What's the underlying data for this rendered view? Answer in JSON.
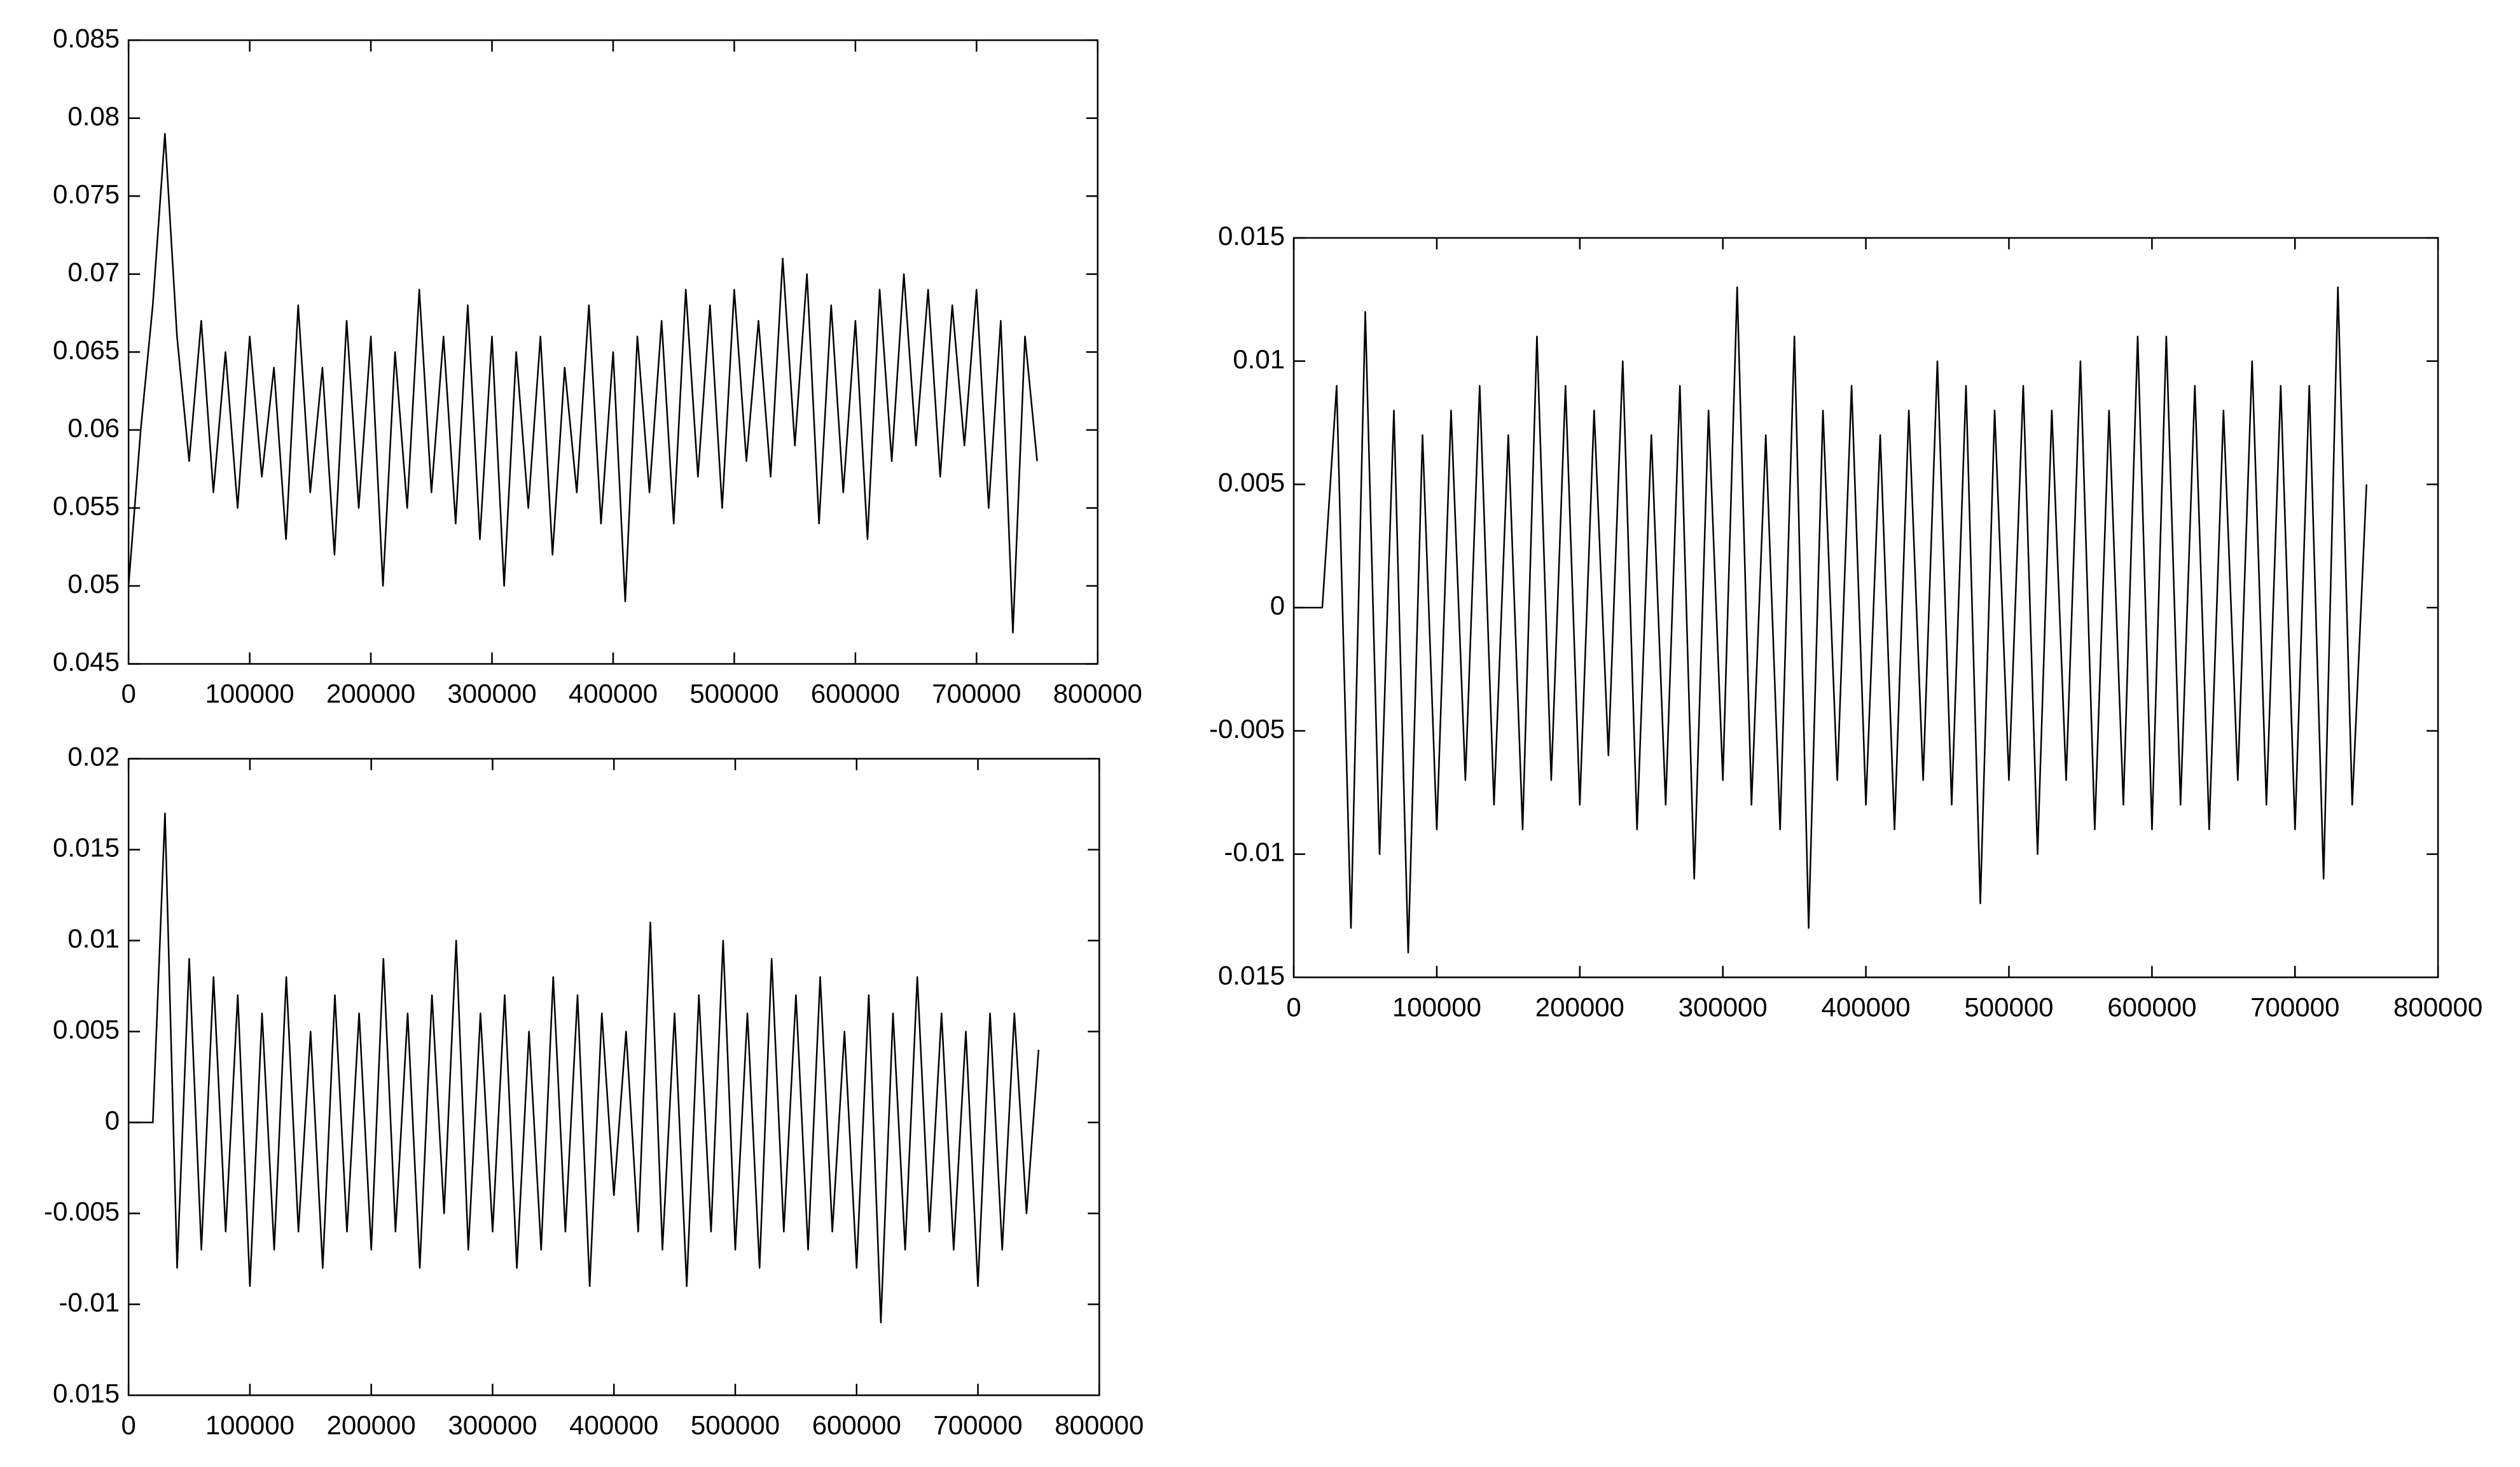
{
  "chart_data": [
    {
      "type": "line",
      "color": "#000000",
      "x": [
        0,
        10000,
        20000,
        30000,
        40000,
        50000,
        60000,
        70000,
        80000,
        90000,
        100000,
        110000,
        120000,
        130000,
        140000,
        150000,
        160000,
        170000,
        180000,
        190000,
        200000,
        210000,
        220000,
        230000,
        240000,
        250000,
        260000,
        270000,
        280000,
        290000,
        300000,
        310000,
        320000,
        330000,
        340000,
        350000,
        360000,
        370000,
        380000,
        390000,
        400000,
        410000,
        420000,
        430000,
        440000,
        450000,
        460000,
        470000,
        480000,
        490000,
        500000,
        510000,
        520000,
        530000,
        540000,
        550000,
        560000,
        570000,
        580000,
        590000,
        600000,
        610000,
        620000,
        630000,
        640000,
        650000,
        660000,
        670000,
        680000,
        690000,
        700000,
        710000,
        720000,
        730000,
        740000,
        750000
      ],
      "values": [
        0.05,
        0.06,
        0.068,
        0.079,
        0.066,
        0.058,
        0.067,
        0.056,
        0.065,
        0.055,
        0.066,
        0.057,
        0.064,
        0.053,
        0.068,
        0.056,
        0.064,
        0.052,
        0.067,
        0.055,
        0.066,
        0.05,
        0.065,
        0.055,
        0.069,
        0.056,
        0.066,
        0.054,
        0.068,
        0.053,
        0.066,
        0.05,
        0.065,
        0.055,
        0.066,
        0.052,
        0.064,
        0.056,
        0.068,
        0.054,
        0.065,
        0.049,
        0.066,
        0.056,
        0.067,
        0.054,
        0.069,
        0.057,
        0.068,
        0.055,
        0.069,
        0.058,
        0.067,
        0.057,
        0.071,
        0.059,
        0.07,
        0.054,
        0.068,
        0.056,
        0.067,
        0.053,
        0.069,
        0.058,
        0.07,
        0.059,
        0.069,
        0.057,
        0.068,
        0.059,
        0.069,
        0.055,
        0.067,
        0.047,
        0.066,
        0.058
      ],
      "xlim": [
        0,
        800000
      ],
      "xticks": [
        0,
        100000,
        200000,
        300000,
        400000,
        500000,
        600000,
        700000,
        800000
      ],
      "ylim": [
        0.045,
        0.085
      ],
      "yticks": [
        0.045,
        0.05,
        0.055,
        0.06,
        0.065,
        0.07,
        0.075,
        0.08,
        0.085
      ]
    },
    {
      "type": "line",
      "color": "#000000",
      "x": [
        0,
        10000,
        20000,
        30000,
        40000,
        50000,
        60000,
        70000,
        80000,
        90000,
        100000,
        110000,
        120000,
        130000,
        140000,
        150000,
        160000,
        170000,
        180000,
        190000,
        200000,
        210000,
        220000,
        230000,
        240000,
        250000,
        260000,
        270000,
        280000,
        290000,
        300000,
        310000,
        320000,
        330000,
        340000,
        350000,
        360000,
        370000,
        380000,
        390000,
        400000,
        410000,
        420000,
        430000,
        440000,
        450000,
        460000,
        470000,
        480000,
        490000,
        500000,
        510000,
        520000,
        530000,
        540000,
        550000,
        560000,
        570000,
        580000,
        590000,
        600000,
        610000,
        620000,
        630000,
        640000,
        650000,
        660000,
        670000,
        680000,
        690000,
        700000,
        710000,
        720000,
        730000,
        740000,
        750000
      ],
      "values": [
        0,
        0,
        0,
        0.017,
        -0.008,
        0.009,
        -0.007,
        0.008,
        -0.006,
        0.007,
        -0.009,
        0.006,
        -0.007,
        0.008,
        -0.006,
        0.005,
        -0.008,
        0.007,
        -0.006,
        0.006,
        -0.007,
        0.009,
        -0.006,
        0.006,
        -0.008,
        0.007,
        -0.005,
        0.01,
        -0.007,
        0.006,
        -0.006,
        0.007,
        -0.008,
        0.005,
        -0.007,
        0.008,
        -0.006,
        0.007,
        -0.009,
        0.006,
        -0.004,
        0.005,
        -0.006,
        0.011,
        -0.007,
        0.006,
        -0.009,
        0.007,
        -0.006,
        0.01,
        -0.007,
        0.006,
        -0.008,
        0.009,
        -0.006,
        0.007,
        -0.007,
        0.008,
        -0.006,
        0.005,
        -0.008,
        0.007,
        -0.011,
        0.006,
        -0.007,
        0.008,
        -0.006,
        0.006,
        -0.007,
        0.005,
        -0.009,
        0.006,
        -0.007,
        0.006,
        -0.005,
        0.004
      ],
      "xlim": [
        0,
        800000
      ],
      "xticks": [
        0,
        100000,
        200000,
        300000,
        400000,
        500000,
        600000,
        700000,
        800000
      ],
      "ylim": [
        -0.015,
        0.02
      ],
      "yticks": [
        {
          "value": -0.015,
          "label": "0.015"
        },
        -0.01,
        -0.005,
        0,
        0.005,
        0.01,
        0.015,
        0.02
      ]
    },
    {
      "type": "line",
      "color": "#000000",
      "x": [
        0,
        10000,
        20000,
        30000,
        40000,
        50000,
        60000,
        70000,
        80000,
        90000,
        100000,
        110000,
        120000,
        130000,
        140000,
        150000,
        160000,
        170000,
        180000,
        190000,
        200000,
        210000,
        220000,
        230000,
        240000,
        250000,
        260000,
        270000,
        280000,
        290000,
        300000,
        310000,
        320000,
        330000,
        340000,
        350000,
        360000,
        370000,
        380000,
        390000,
        400000,
        410000,
        420000,
        430000,
        440000,
        450000,
        460000,
        470000,
        480000,
        490000,
        500000,
        510000,
        520000,
        530000,
        540000,
        550000,
        560000,
        570000,
        580000,
        590000,
        600000,
        610000,
        620000,
        630000,
        640000,
        650000,
        660000,
        670000,
        680000,
        690000,
        700000,
        710000,
        720000,
        730000,
        740000,
        750000
      ],
      "values": [
        0,
        0,
        0,
        0.009,
        -0.013,
        0.012,
        -0.01,
        0.008,
        -0.014,
        0.007,
        -0.009,
        0.008,
        -0.007,
        0.009,
        -0.008,
        0.007,
        -0.009,
        0.011,
        -0.007,
        0.009,
        -0.008,
        0.008,
        -0.006,
        0.01,
        -0.009,
        0.007,
        -0.008,
        0.009,
        -0.011,
        0.008,
        -0.007,
        0.013,
        -0.008,
        0.007,
        -0.009,
        0.011,
        -0.013,
        0.008,
        -0.007,
        0.009,
        -0.008,
        0.007,
        -0.009,
        0.008,
        -0.007,
        0.01,
        -0.008,
        0.009,
        -0.012,
        0.008,
        -0.007,
        0.009,
        -0.01,
        0.008,
        -0.007,
        0.01,
        -0.009,
        0.008,
        -0.008,
        0.011,
        -0.009,
        0.011,
        -0.008,
        0.009,
        -0.009,
        0.008,
        -0.007,
        0.01,
        -0.008,
        0.009,
        -0.009,
        0.009,
        -0.011,
        0.013,
        -0.008,
        0.005
      ],
      "xlim": [
        0,
        800000
      ],
      "xticks": [
        0,
        100000,
        200000,
        300000,
        400000,
        500000,
        600000,
        700000,
        800000
      ],
      "ylim": [
        -0.015,
        0.015
      ],
      "yticks": [
        {
          "value": -0.015,
          "label": "0.015"
        },
        -0.01,
        -0.005,
        0,
        0.005,
        0.01,
        0.015
      ]
    }
  ]
}
